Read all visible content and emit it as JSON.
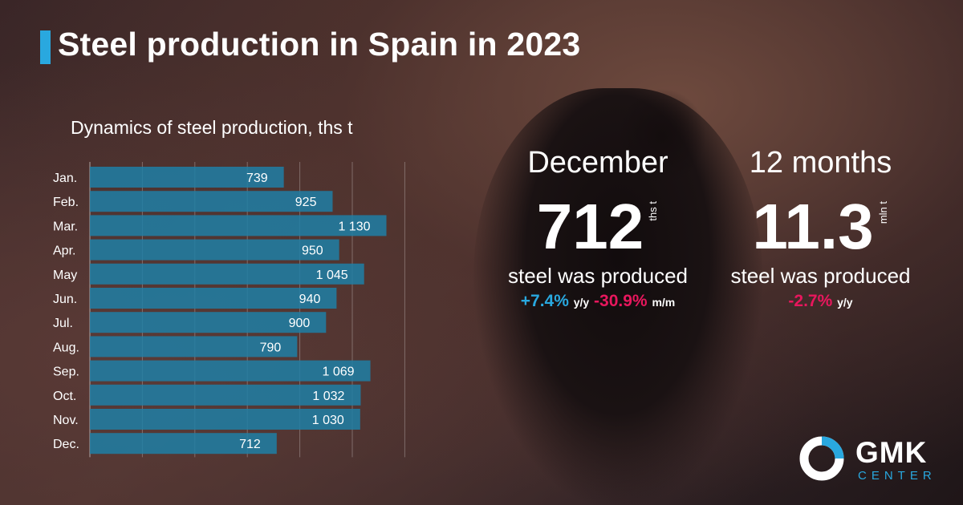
{
  "header": {
    "title": "Steel production in Spain in 2023"
  },
  "chart_data": {
    "type": "bar",
    "orientation": "horizontal",
    "title": "Dynamics of steel production, ths t",
    "categories": [
      "Jan.",
      "Feb.",
      "Mar.",
      "Apr.",
      "May",
      "Jun.",
      "Jul.",
      "Aug.",
      "Sep.",
      "Oct.",
      "Nov.",
      "Dec."
    ],
    "values": [
      739,
      925,
      1130,
      950,
      1045,
      940,
      900,
      790,
      1069,
      1032,
      1030,
      712
    ],
    "value_labels": [
      "739",
      "925",
      "1 130",
      "950",
      "1 045",
      "940",
      "900",
      "790",
      "1 069",
      "1 032",
      "1 030",
      "712"
    ],
    "xlim": [
      0,
      1200
    ],
    "grid": true,
    "bar_color": "#1f7fa6"
  },
  "december": {
    "heading": "December",
    "value": "712",
    "unit": "ths t",
    "caption": "steel was produced",
    "change_yoy": "+7.4%",
    "yoy_suffix": "y/y",
    "change_mom": "-30.9%",
    "mom_suffix": "m/m"
  },
  "annual": {
    "heading": "12 months",
    "value": "11.3",
    "unit": "mln t",
    "caption": "steel was produced",
    "change_yoy": "-2.7%",
    "yoy_suffix": "y/y"
  },
  "logo": {
    "main": "GMK",
    "sub": "CENTER"
  },
  "colors": {
    "accent_blue": "#29a8df",
    "accent_red": "#e8175d"
  }
}
